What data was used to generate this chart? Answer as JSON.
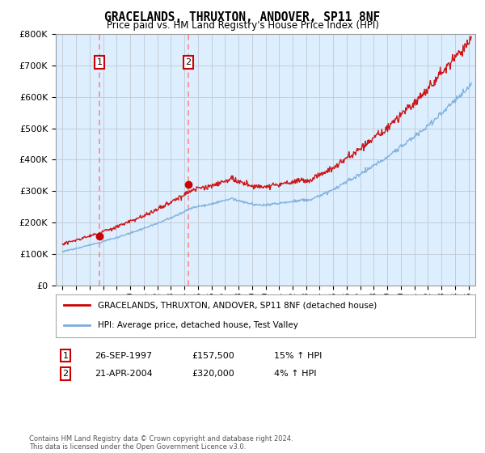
{
  "title": "GRACELANDS, THRUXTON, ANDOVER, SP11 8NF",
  "subtitle": "Price paid vs. HM Land Registry's House Price Index (HPI)",
  "legend_line1": "GRACELANDS, THRUXTON, ANDOVER, SP11 8NF (detached house)",
  "legend_line2": "HPI: Average price, detached house, Test Valley",
  "footer": "Contains HM Land Registry data © Crown copyright and database right 2024.\nThis data is licensed under the Open Government Licence v3.0.",
  "sale1_date": "26-SEP-1997",
  "sale1_price": 157500,
  "sale1_label": "1",
  "sale1_hpi": "15% ↑ HPI",
  "sale1_year": 1997.73,
  "sale2_date": "21-APR-2004",
  "sale2_price": 320000,
  "sale2_label": "2",
  "sale2_hpi": "4% ↑ HPI",
  "sale2_year": 2004.3,
  "red_color": "#cc0000",
  "blue_color": "#7aaddb",
  "background_color": "#ddeeff",
  "grid_color": "#c0c8d0",
  "dashed_color": "#ff8888",
  "ylim": [
    0,
    800000
  ],
  "xlim_start": 1994.5,
  "xlim_end": 2025.5
}
